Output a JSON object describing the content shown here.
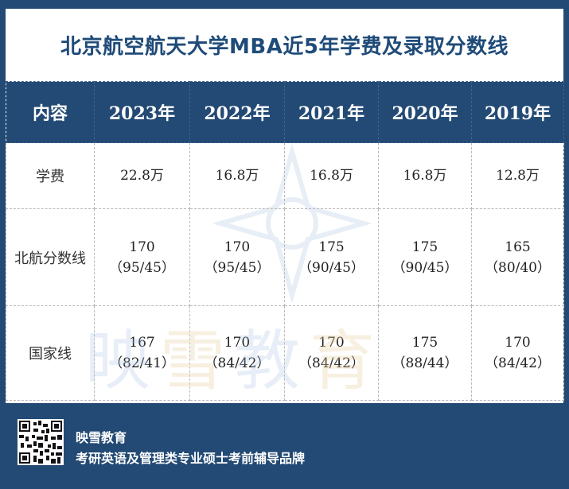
{
  "title": "北京航空航天大学MBA近5年学费及录取分数线",
  "table": {
    "header": [
      "内容",
      "2023年",
      "2022年",
      "2021年",
      "2020年",
      "2019年"
    ],
    "rows": [
      {
        "label": "学费",
        "cells": [
          [
            "22.8万"
          ],
          [
            "16.8万"
          ],
          [
            "16.8万"
          ],
          [
            "16.8万"
          ],
          [
            "12.8万"
          ]
        ]
      },
      {
        "label": "北航分数线",
        "cells": [
          [
            "170",
            "（95/45）"
          ],
          [
            "170",
            "（95/45）"
          ],
          [
            "175",
            "（90/45）"
          ],
          [
            "175",
            "（90/45）"
          ],
          [
            "165",
            "（80/40）"
          ]
        ]
      },
      {
        "label": "国家线",
        "cells": [
          [
            "167",
            "（82/41）"
          ],
          [
            "170",
            "（84/42）"
          ],
          [
            "170",
            "（84/42）"
          ],
          [
            "175",
            "（88/44）"
          ],
          [
            "170",
            "（84/42）"
          ]
        ]
      }
    ]
  },
  "watermark": [
    "映",
    "雪",
    "教",
    "育"
  ],
  "footer": {
    "brand": "映雪教育",
    "slogan": "考研英语及管理类专业硕士考前辅导品牌"
  },
  "colors": {
    "navy": "#234a74",
    "title_blue": "#1f4b79"
  },
  "icons": {
    "qr": "qr-code-icon",
    "logo": "star-logo-icon"
  }
}
